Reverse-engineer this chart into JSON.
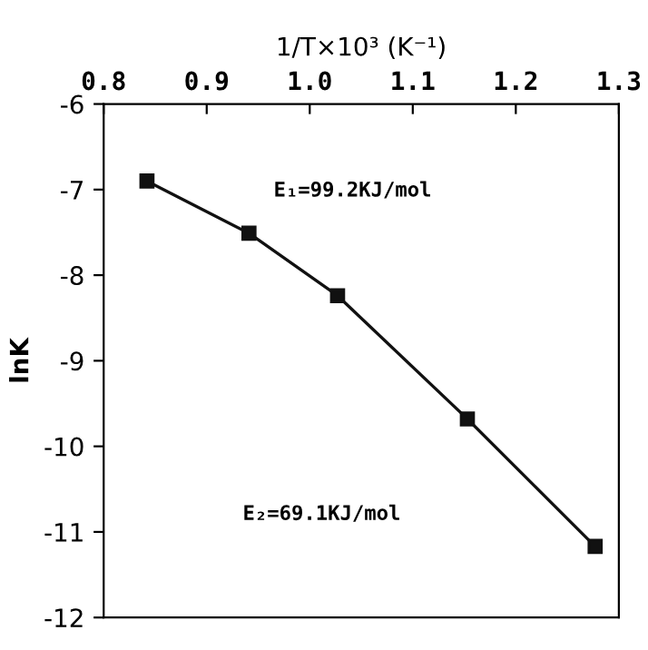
{
  "chart_data": {
    "type": "line",
    "xlabel": "1/T×10³ (K⁻¹)",
    "ylabel": "lnK",
    "x": [
      0.842,
      0.941,
      1.027,
      1.153,
      1.277
    ],
    "series": [
      {
        "color": "#111111",
        "values": [
          -6.9,
          -7.51,
          -8.24,
          -9.68,
          -11.17
        ]
      }
    ],
    "xlim": [
      0.8,
      1.3
    ],
    "xticks": [
      0.8,
      0.9,
      {
        "value": 1.0,
        "label": "1.0"
      },
      1.1,
      1.2,
      1.3
    ],
    "ylim": [
      -12,
      -6
    ],
    "yticks": [
      -6,
      -7,
      -8,
      -9,
      -10,
      -11,
      -12
    ],
    "marker": "square",
    "line_style": "solid",
    "grid": false,
    "legend": false,
    "annotations": [
      "E₁=99.2KJ/mol",
      "E₂=69.1KJ/mol"
    ]
  }
}
